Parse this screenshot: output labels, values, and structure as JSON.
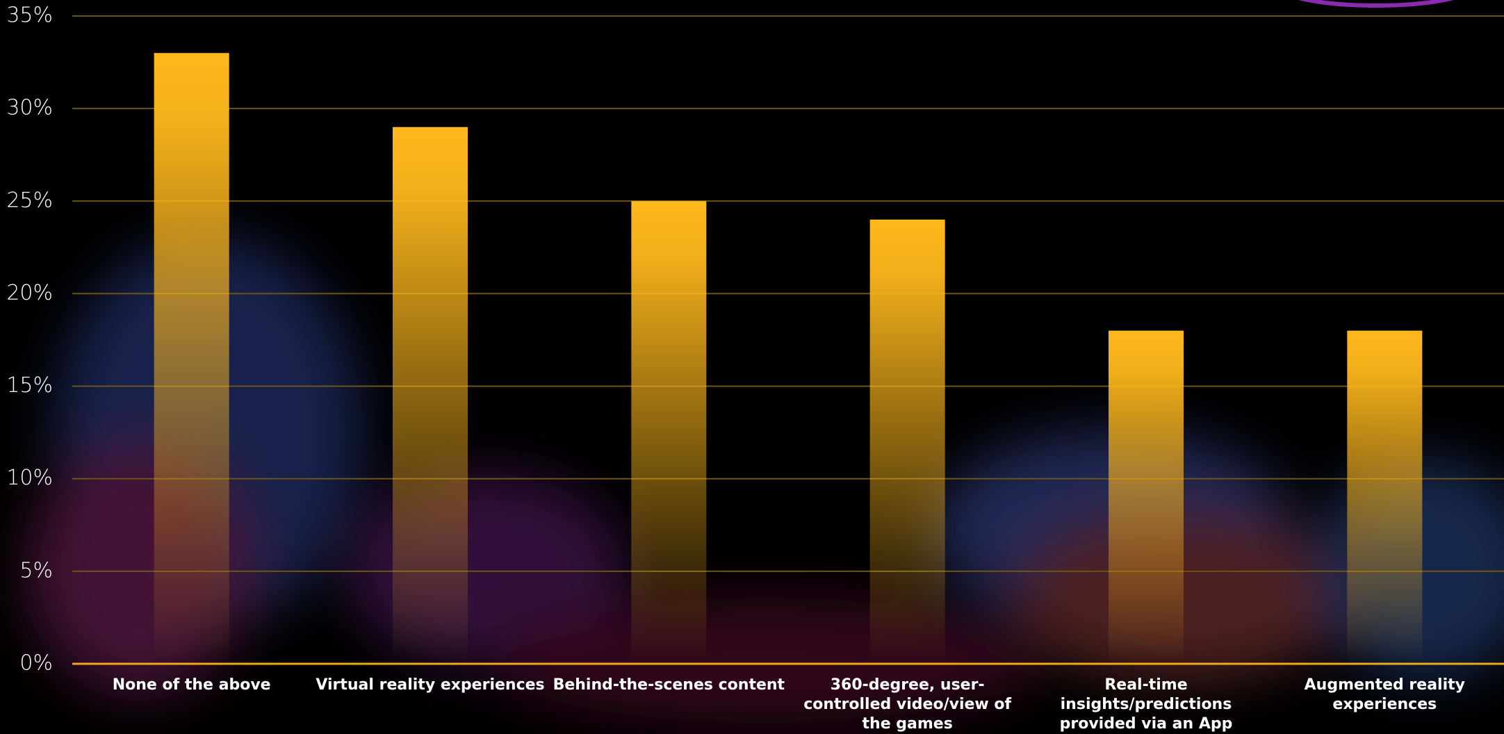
{
  "chart_data": {
    "type": "bar",
    "categories": [
      "None of the above",
      "Virtual reality experiences",
      "Behind-the-scenes content",
      "360-degree, user-controlled video/view of the games",
      "Real-time insights/predictions provided via an App",
      "Augmented reality experiences"
    ],
    "values": [
      33,
      29,
      25,
      24,
      18,
      18
    ],
    "color": "#ffb81c",
    "ylim": [
      0,
      35
    ],
    "yticks": [
      {
        "value": 0,
        "label": "0%"
      },
      {
        "value": 5,
        "label": "5%"
      },
      {
        "value": 10,
        "label": "10%"
      },
      {
        "value": 15,
        "label": "15%"
      },
      {
        "value": 20,
        "label": "20%"
      },
      {
        "value": 25,
        "label": "25%"
      },
      {
        "value": 30,
        "label": "30%"
      },
      {
        "value": 35,
        "label": "35%"
      }
    ],
    "grid": true
  }
}
